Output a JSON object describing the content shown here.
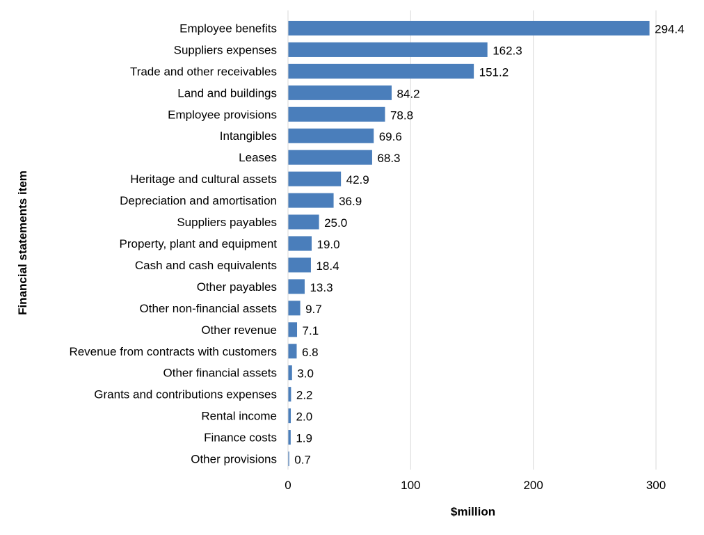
{
  "chart_data": {
    "type": "bar",
    "orientation": "horizontal",
    "categories": [
      "Employee benefits",
      "Suppliers expenses",
      "Trade and other receivables",
      "Land and buildings",
      "Employee provisions",
      "Intangibles",
      "Leases",
      "Heritage and cultural assets",
      "Depreciation and amortisation",
      "Suppliers payables",
      "Property, plant and equipment",
      "Cash and cash equivalents",
      "Other payables",
      "Other non-financial assets",
      "Other revenue",
      "Revenue from contracts with customers",
      "Other financial assets",
      "Grants and contributions expenses",
      "Rental income",
      "Finance costs",
      "Other provisions"
    ],
    "values": [
      294.4,
      162.3,
      151.2,
      84.2,
      78.8,
      69.6,
      68.3,
      42.9,
      36.9,
      25.0,
      19.0,
      18.4,
      13.3,
      9.7,
      7.1,
      6.8,
      3.0,
      2.2,
      2.0,
      1.9,
      0.7
    ],
    "value_labels": [
      "294.4",
      "162.3",
      "151.2",
      "84.2",
      "78.8",
      "69.6",
      "68.3",
      "42.9",
      "36.9",
      "25.0",
      "19.0",
      "18.4",
      "13.3",
      "9.7",
      "7.1",
      "6.8",
      "3.0",
      "2.2",
      "2.0",
      "1.9",
      "0.7"
    ],
    "xlabel": "$million",
    "ylabel": "Financial statements item",
    "xlim": [
      0,
      300
    ],
    "xticks": [
      0,
      100,
      200,
      300
    ],
    "xtick_labels": [
      "0",
      "100",
      "200",
      "300"
    ],
    "grid": "vertical",
    "legend": "none",
    "bar_color": "#4a7ebb",
    "grid_color": "#d9d9d9"
  }
}
